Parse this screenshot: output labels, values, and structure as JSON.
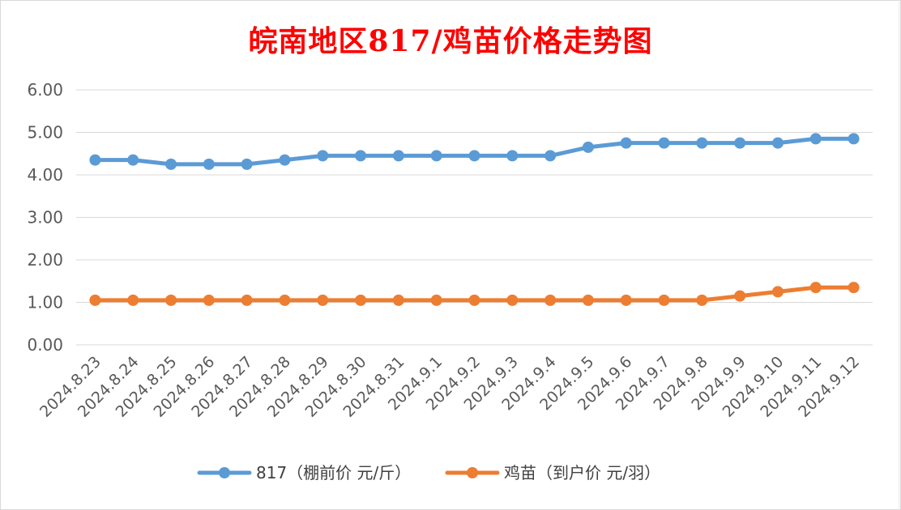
{
  "chart_data": {
    "type": "line",
    "title": "皖南地区817/鸡苗价格走势图",
    "xlabel": "",
    "ylabel": "",
    "categories": [
      "2024.8.23",
      "2024.8.24",
      "2024.8.25",
      "2024.8.26",
      "2024.8.27",
      "2024.8.28",
      "2024.8.29",
      "2024.8.30",
      "2024.8.31",
      "2024.9.1",
      "2024.9.2",
      "2024.9.3",
      "2024.9.4",
      "2024.9.5",
      "2024.9.6",
      "2024.9.7",
      "2024.9.8",
      "2024.9.9",
      "2024.9.10",
      "2024.9.11",
      "2024.9.12"
    ],
    "series": [
      {
        "name": "817（棚前价 元/斤）",
        "color": "#5B9BD5",
        "values": [
          4.35,
          4.35,
          4.25,
          4.25,
          4.25,
          4.35,
          4.45,
          4.45,
          4.45,
          4.45,
          4.45,
          4.45,
          4.45,
          4.65,
          4.75,
          4.75,
          4.75,
          4.75,
          4.75,
          4.85,
          4.85
        ]
      },
      {
        "name": "鸡苗（到户价 元/羽）",
        "color": "#ED7D31",
        "values": [
          1.05,
          1.05,
          1.05,
          1.05,
          1.05,
          1.05,
          1.05,
          1.05,
          1.05,
          1.05,
          1.05,
          1.05,
          1.05,
          1.05,
          1.05,
          1.05,
          1.05,
          1.15,
          1.25,
          1.35,
          1.35
        ]
      }
    ],
    "ylim": [
      0,
      6
    ],
    "yticks": [
      "0.00",
      "1.00",
      "2.00",
      "3.00",
      "4.00",
      "5.00",
      "6.00"
    ],
    "grid": true,
    "legend": "bottom",
    "title_color": "#FF0000"
  }
}
